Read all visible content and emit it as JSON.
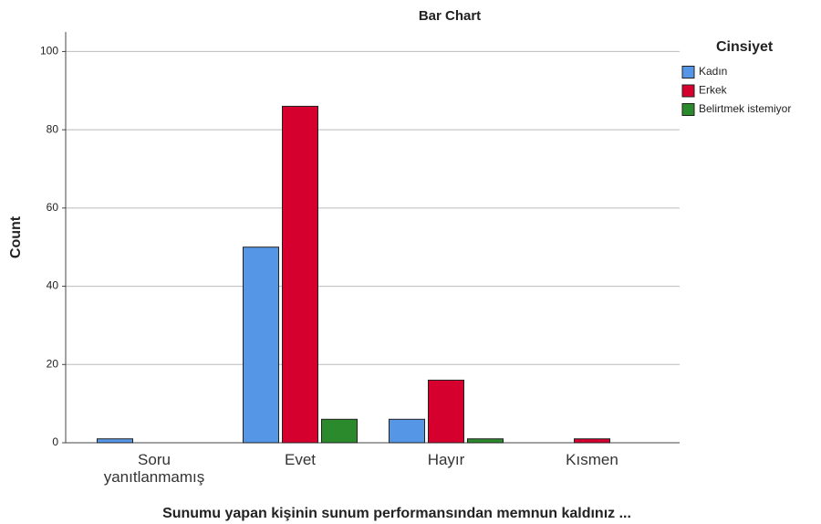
{
  "chart_data": {
    "type": "bar",
    "title": "Bar Chart",
    "x_label": "Sunumu yapan kişinin sunum performansından memnun kaldınız ...",
    "y_label": "Count",
    "legend_title": "Cinsiyet",
    "categories": [
      "Soru yanıtlanmamış",
      "Evet",
      "Hayır",
      "Kısmen"
    ],
    "series": [
      {
        "name": "Kadın",
        "color": "#5597e6",
        "values": [
          1,
          50,
          6,
          0
        ]
      },
      {
        "name": "Erkek",
        "color": "#d6002f",
        "values": [
          0,
          86,
          16,
          1
        ]
      },
      {
        "name": "Belirtmek istemiyor",
        "color": "#2a8a2c",
        "values": [
          0,
          6,
          1,
          0
        ]
      }
    ],
    "ylim": [
      0,
      105
    ],
    "yticks": [
      0,
      20,
      40,
      60,
      80,
      100
    ],
    "grid": true,
    "legend": "right"
  }
}
